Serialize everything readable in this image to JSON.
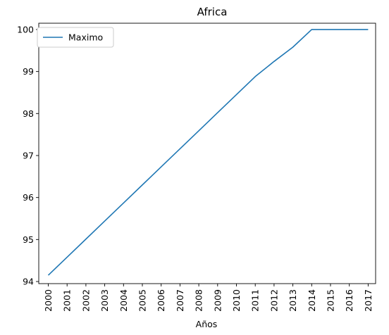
{
  "chart_data": {
    "type": "line",
    "title": "Africa",
    "xlabel": "Años",
    "ylabel": "",
    "categories": [
      "2000",
      "2001",
      "2002",
      "2003",
      "2004",
      "2005",
      "2006",
      "2007",
      "2008",
      "2009",
      "2010",
      "2011",
      "2012",
      "2013",
      "2014",
      "2015",
      "2016",
      "2017"
    ],
    "series": [
      {
        "name": "Maximo",
        "color": "#1f77b4",
        "values": [
          94.15,
          94.58,
          95.01,
          95.44,
          95.87,
          96.3,
          96.73,
          97.16,
          97.59,
          98.02,
          98.45,
          98.88,
          99.24,
          99.58,
          100.0,
          100.0,
          100.0,
          100.0
        ]
      }
    ],
    "ylim": [
      93.95,
      100.15
    ],
    "yticks": [
      94,
      95,
      96,
      97,
      98,
      99,
      100
    ],
    "grid": false,
    "legend_position": "top-left"
  }
}
